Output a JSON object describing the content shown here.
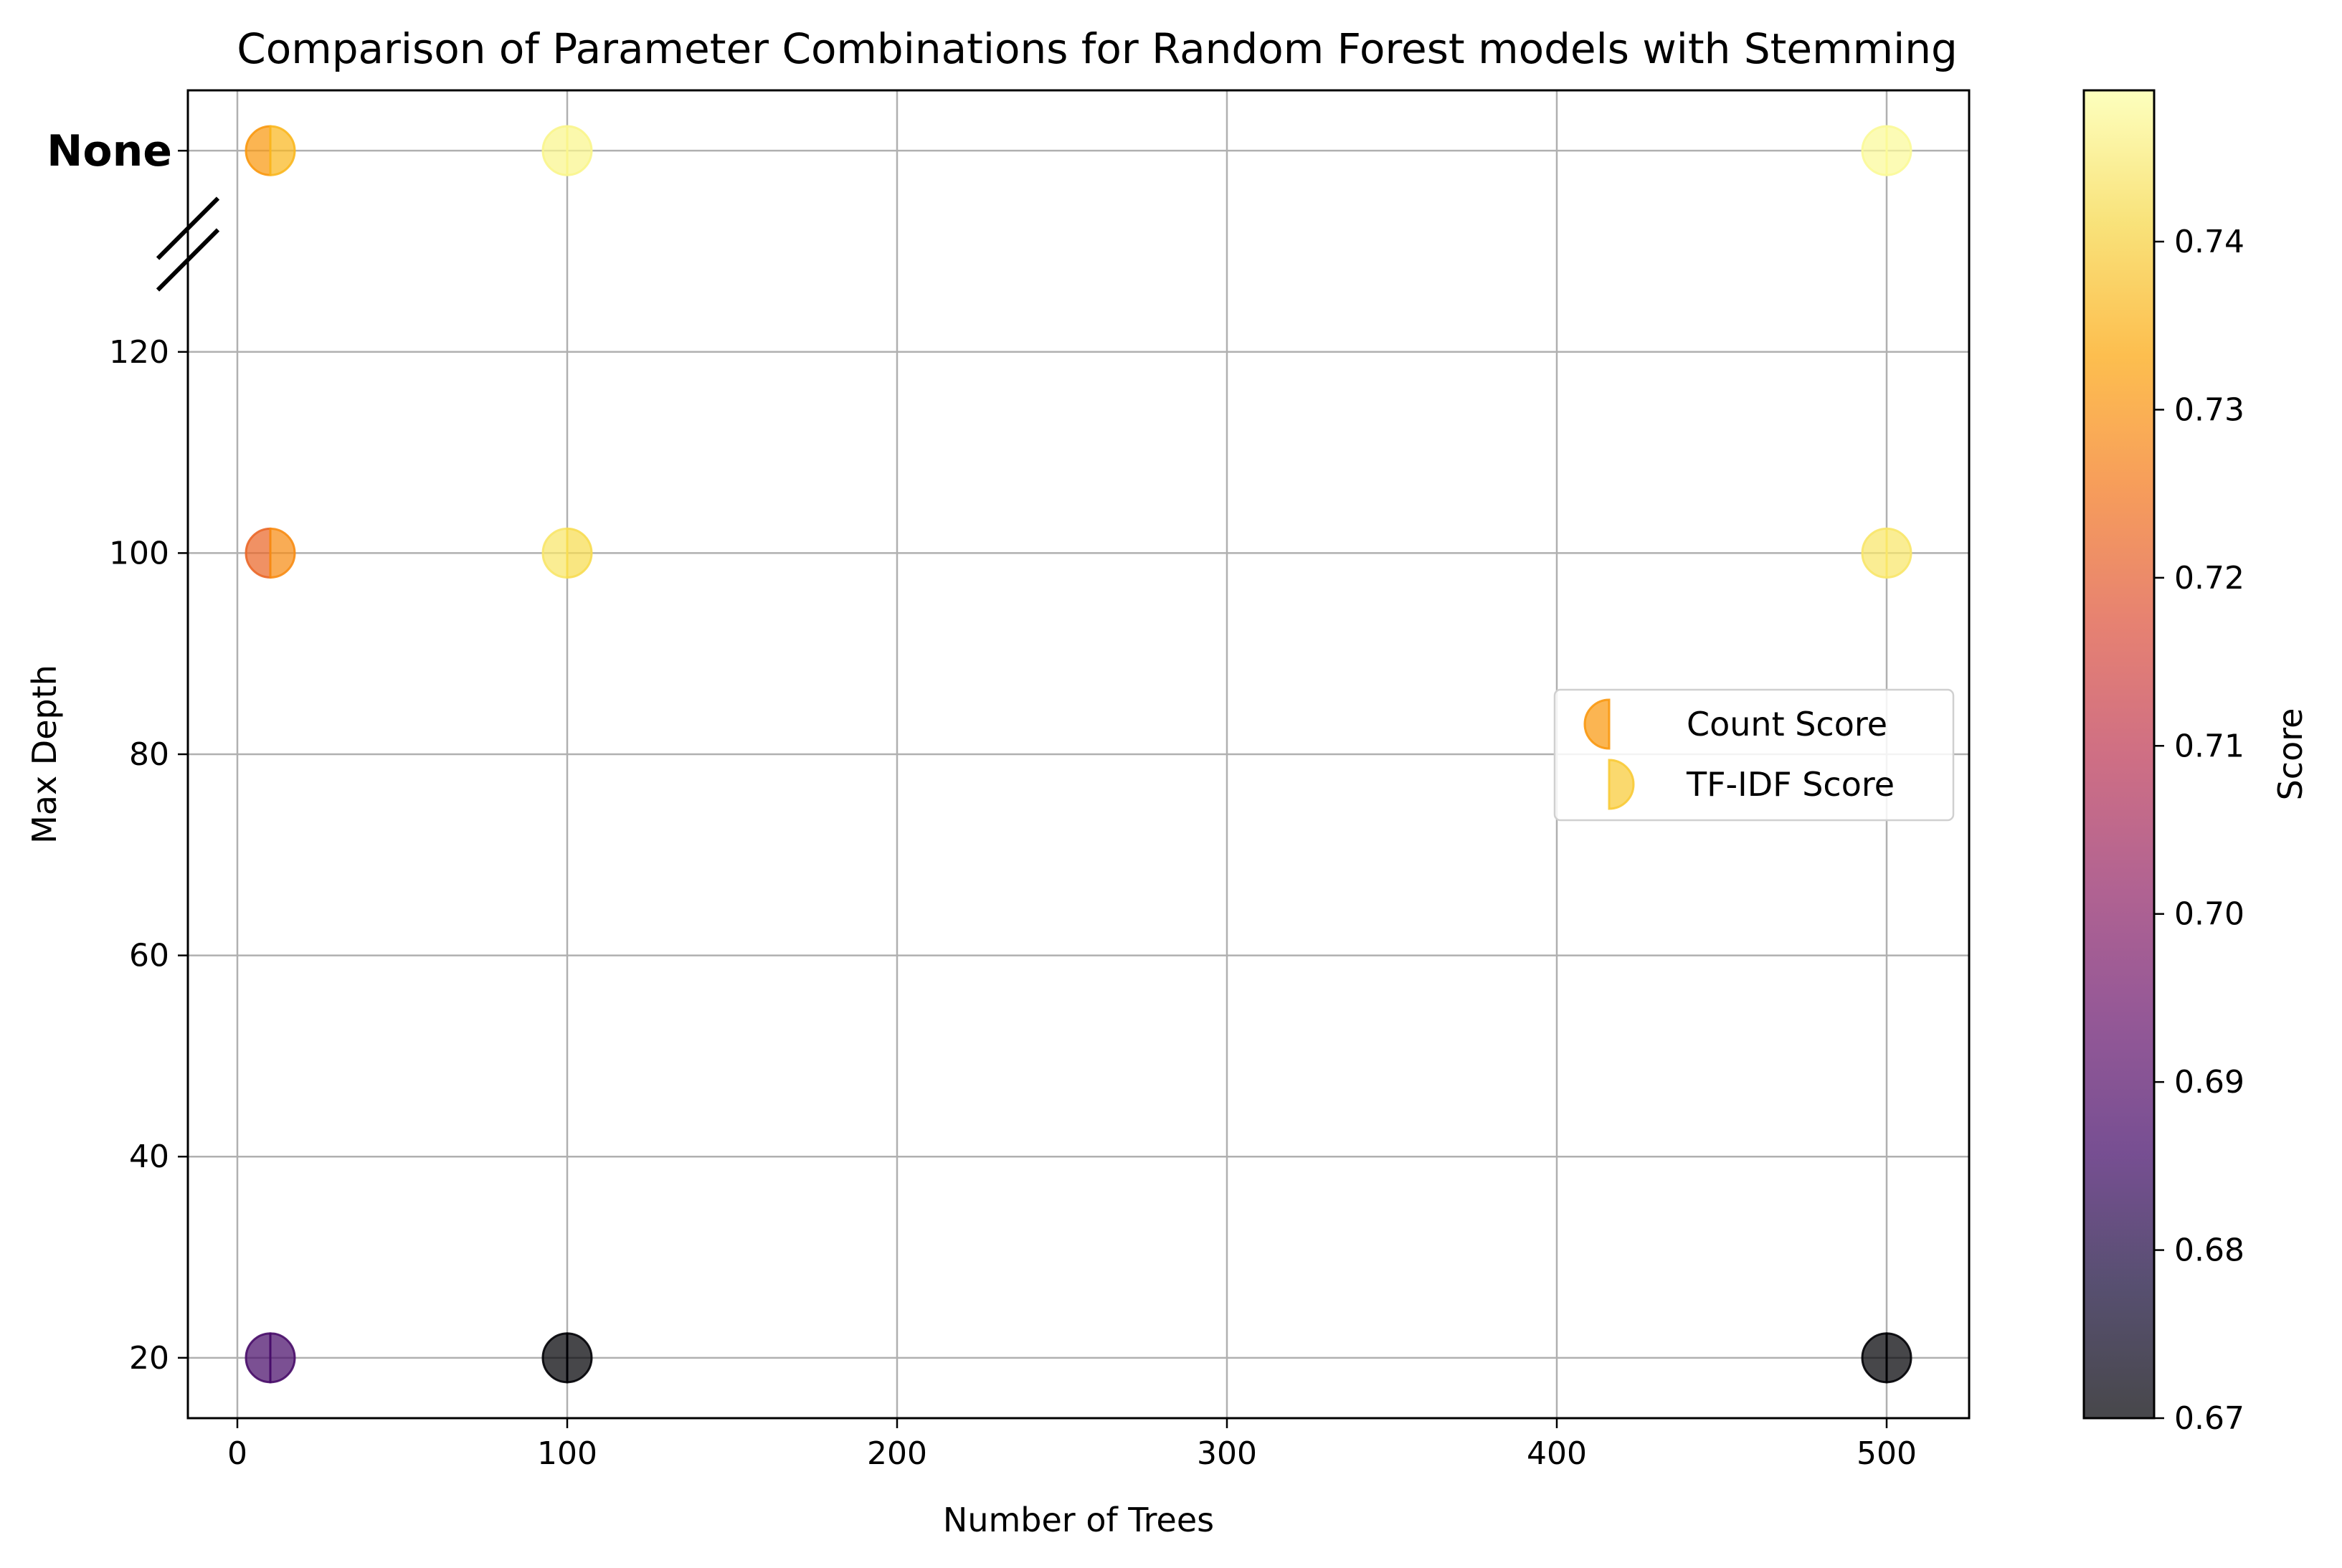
{
  "chart_data": {
    "type": "scatter",
    "title": "Comparison of Parameter Combinations for Random Forest models with Stemming",
    "xlabel": "Number of Trees",
    "ylabel": "Max Depth",
    "xlim": [
      -15,
      525
    ],
    "ylim": [
      14,
      146
    ],
    "x_ticks": [
      0,
      100,
      200,
      300,
      400,
      500
    ],
    "y_ticks": [
      20,
      40,
      60,
      80,
      100,
      120
    ],
    "y_special_tick": {
      "label": "None",
      "value": 140
    },
    "grid": true,
    "axis_break": true,
    "legend_placement": "center-right",
    "colormap": "inferno",
    "series": [
      {
        "name": "Count Score",
        "marker": "left-half-circle",
        "points": [
          {
            "x": 10,
            "y": 20,
            "label": "20",
            "score": 0.687
          },
          {
            "x": 10,
            "y": 100,
            "label": "100",
            "score": 0.722
          },
          {
            "x": 10,
            "y": 140,
            "label": "None",
            "score": 0.731
          },
          {
            "x": 100,
            "y": 20,
            "label": "20",
            "score": 0.67
          },
          {
            "x": 100,
            "y": 100,
            "label": "100",
            "score": 0.744
          },
          {
            "x": 100,
            "y": 140,
            "label": "None",
            "score": 0.747
          },
          {
            "x": 500,
            "y": 20,
            "label": "20",
            "score": 0.67
          },
          {
            "x": 500,
            "y": 100,
            "label": "100",
            "score": 0.744
          },
          {
            "x": 500,
            "y": 140,
            "label": "None",
            "score": 0.748
          }
        ]
      },
      {
        "name": "TF-IDF Score",
        "marker": "right-half-circle",
        "points": [
          {
            "x": 10,
            "y": 20,
            "label": "20",
            "score": 0.687
          },
          {
            "x": 10,
            "y": 100,
            "label": "100",
            "score": 0.729
          },
          {
            "x": 10,
            "y": 140,
            "label": "None",
            "score": 0.736
          },
          {
            "x": 100,
            "y": 20,
            "label": "20",
            "score": 0.67
          },
          {
            "x": 100,
            "y": 100,
            "label": "100",
            "score": 0.742
          },
          {
            "x": 100,
            "y": 140,
            "label": "None",
            "score": 0.747
          },
          {
            "x": 500,
            "y": 20,
            "label": "20",
            "score": 0.67
          },
          {
            "x": 500,
            "y": 100,
            "label": "100",
            "score": 0.744
          },
          {
            "x": 500,
            "y": 140,
            "label": "None",
            "score": 0.748
          }
        ]
      }
    ],
    "colorbar": {
      "label": "Score",
      "range": [
        0.67,
        0.749
      ],
      "ticks": [
        0.67,
        0.68,
        0.69,
        0.7,
        0.71,
        0.72,
        0.73,
        0.74
      ],
      "tick_labels": [
        "0.67",
        "0.68",
        "0.69",
        "0.70",
        "0.71",
        "0.72",
        "0.73",
        "0.74"
      ]
    }
  }
}
